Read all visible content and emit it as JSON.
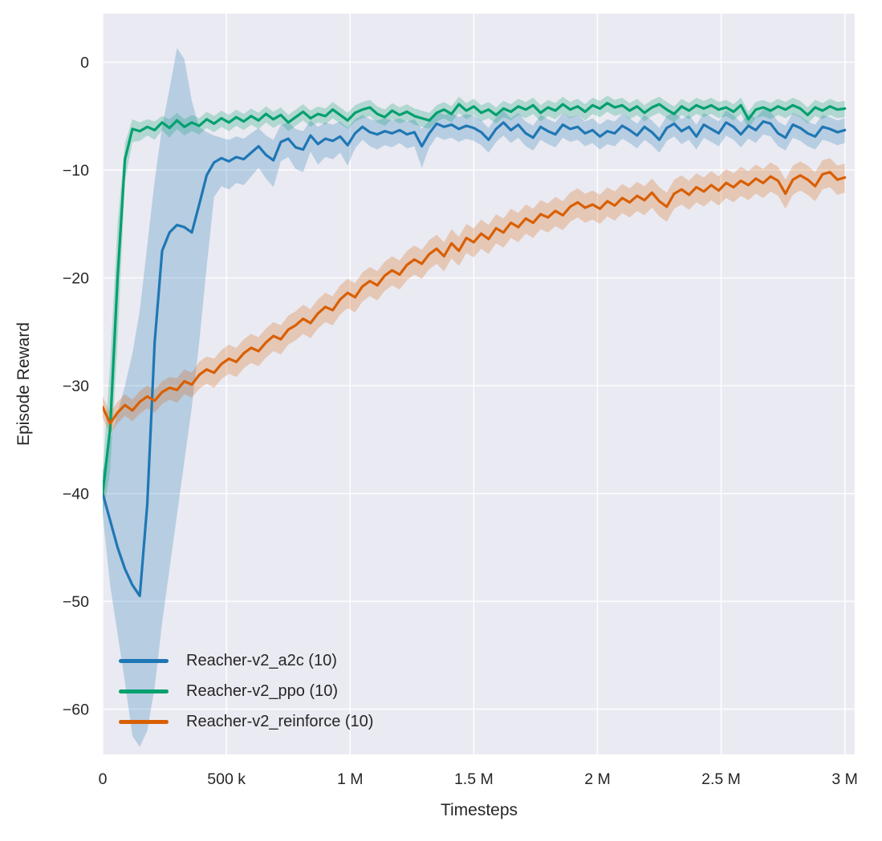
{
  "figure": {
    "background": "#ffffff",
    "plot_background": "#eaeaf2",
    "grid_color": "#ffffff",
    "text_color": "#262626"
  },
  "chart_data": {
    "type": "line",
    "title": "",
    "xlabel": "Timesteps",
    "ylabel": "Episode Reward",
    "xlim": [
      0,
      3040000
    ],
    "ylim": [
      -64.2,
      4.5
    ],
    "grid": true,
    "legend_position": "lower-left",
    "band_opacity": 0.25,
    "x_ticks": [
      {
        "value": 0,
        "label": "0"
      },
      {
        "value": 500000,
        "label": "500 k"
      },
      {
        "value": 1000000,
        "label": "1 M"
      },
      {
        "value": 1500000,
        "label": "1.5 M"
      },
      {
        "value": 2000000,
        "label": "2 M"
      },
      {
        "value": 2500000,
        "label": "2.5 M"
      },
      {
        "value": 3000000,
        "label": "3 M"
      }
    ],
    "y_ticks": [
      {
        "value": 0,
        "label": "0"
      },
      {
        "value": -10,
        "label": "−10"
      },
      {
        "value": -20,
        "label": "−20"
      },
      {
        "value": -30,
        "label": "−30"
      },
      {
        "value": -40,
        "label": "−40"
      },
      {
        "value": -50,
        "label": "−50"
      },
      {
        "value": -60,
        "label": "−60"
      }
    ],
    "x_start": 0,
    "x_step": 30000,
    "series": [
      {
        "name": "Reacher-v2_a2c (10)",
        "color": "#1f77b4",
        "values": [
          -40,
          -42.5,
          -45,
          -47,
          -48.5,
          -49.5,
          -41,
          -26,
          -17.5,
          -15.8,
          -15.1,
          -15.3,
          -15.8,
          -13.2,
          -10.5,
          -9.3,
          -8.9,
          -9.2,
          -8.8,
          -9.0,
          -8.4,
          -7.8,
          -8.6,
          -9.1,
          -7.4,
          -7.1,
          -7.9,
          -8.1,
          -6.8,
          -7.6,
          -7.1,
          -7.3,
          -6.9,
          -7.7,
          -6.6,
          -6.0,
          -6.5,
          -6.7,
          -6.4,
          -6.6,
          -6.3,
          -6.7,
          -6.5,
          -7.8,
          -6.6,
          -5.7,
          -6.0,
          -5.8,
          -6.2,
          -5.9,
          -6.1,
          -6.5,
          -7.2,
          -6.2,
          -5.6,
          -6.3,
          -5.8,
          -6.6,
          -7.0,
          -6.0,
          -6.4,
          -6.7,
          -5.8,
          -6.2,
          -6.0,
          -6.6,
          -6.3,
          -6.9,
          -6.4,
          -6.6,
          -5.9,
          -6.3,
          -6.8,
          -6.0,
          -6.5,
          -7.2,
          -6.1,
          -5.7,
          -6.4,
          -6.0,
          -6.9,
          -5.8,
          -6.2,
          -6.6,
          -5.6,
          -6.0,
          -6.7,
          -5.9,
          -6.3,
          -5.5,
          -5.7,
          -6.6,
          -7.0,
          -5.8,
          -6.1,
          -6.6,
          -6.9,
          -6.0,
          -6.2,
          -6.5,
          -6.3
        ],
        "band_below": [
          2,
          6,
          8,
          10.5,
          14,
          14,
          21,
          32,
          34.5,
          31.2,
          26.9,
          21.7,
          16.2,
          12.8,
          8.5,
          3.2,
          2.6,
          2.6,
          2.4,
          2.4,
          2.2,
          2.0,
          2.2,
          2.5,
          1.8,
          1.7,
          2.0,
          2.1,
          1.5,
          1.9,
          1.7,
          1.7,
          1.5,
          1.9,
          1.4,
          1.2,
          1.3,
          1.4,
          1.3,
          1.3,
          1.2,
          1.3,
          1.3,
          2.0,
          1.3,
          1.2
        ],
        "band_above": [
          2,
          7.5,
          12.5,
          17,
          21.5,
          26.5,
          24,
          15,
          11.5,
          13.3,
          16.4,
          15.6,
          12.2,
          7.2,
          4.0,
          2.5,
          1.9,
          2.0,
          1.9,
          1.9,
          1.8,
          1.7,
          1.8,
          1.9,
          1.6,
          1.5,
          1.7,
          1.7,
          1.4,
          1.6,
          1.5,
          1.5,
          1.4,
          1.6,
          1.3,
          1.1,
          1.2,
          1.3,
          1.2,
          1.2,
          1.1,
          1.2,
          1.2,
          1.6,
          1.2,
          1.1
        ]
      },
      {
        "name": "Reacher-v2_ppo (10)",
        "color": "#02a06e",
        "values": [
          -40,
          -34,
          -20,
          -9,
          -6.2,
          -6.4,
          -6.0,
          -6.3,
          -5.6,
          -6.1,
          -5.4,
          -6.0,
          -5.6,
          -5.9,
          -5.3,
          -5.7,
          -5.2,
          -5.6,
          -5.1,
          -5.5,
          -5.0,
          -5.4,
          -4.8,
          -5.3,
          -4.9,
          -5.6,
          -5.1,
          -4.6,
          -5.2,
          -4.8,
          -5.0,
          -4.4,
          -4.9,
          -5.4,
          -4.7,
          -4.4,
          -4.2,
          -4.8,
          -5.1,
          -4.5,
          -4.9,
          -4.6,
          -5.0,
          -5.2,
          -5.4,
          -4.7,
          -4.4,
          -4.8,
          -3.9,
          -4.5,
          -4.1,
          -4.7,
          -4.4,
          -4.9,
          -4.3,
          -4.6,
          -4.1,
          -4.4,
          -4.0,
          -4.7,
          -4.2,
          -4.5,
          -3.9,
          -4.4,
          -4.1,
          -4.6,
          -4.0,
          -4.3,
          -3.8,
          -4.2,
          -4.0,
          -4.5,
          -4.1,
          -4.7,
          -4.2,
          -3.9,
          -4.4,
          -4.8,
          -4.1,
          -4.5,
          -4.0,
          -4.3,
          -4.0,
          -4.4,
          -4.2,
          -4.6,
          -4.0,
          -5.3,
          -4.4,
          -4.2,
          -4.5,
          -4.1,
          -4.4,
          -4.0,
          -4.3,
          -4.9,
          -4.2,
          -4.5,
          -4.1,
          -4.4,
          -4.3
        ],
        "band_below": [
          2,
          4,
          6,
          2,
          1.2,
          0.9,
          0.8,
          0.9,
          0.7,
          0.9,
          0.8
        ],
        "band_above": [
          2,
          6,
          5,
          1.5,
          0.9,
          0.8,
          0.7,
          0.8,
          0.6,
          0.8,
          0.7
        ]
      },
      {
        "name": "Reacher-v2_reinforce (10)",
        "color": "#d95f02",
        "values": [
          -32,
          -33.5,
          -32.5,
          -31.8,
          -32.3,
          -31.5,
          -31.0,
          -31.4,
          -30.6,
          -30.2,
          -30.4,
          -29.6,
          -29.9,
          -29.0,
          -28.5,
          -28.8,
          -28.0,
          -27.5,
          -27.8,
          -27.0,
          -26.5,
          -26.8,
          -26.0,
          -25.4,
          -25.7,
          -24.8,
          -24.4,
          -23.8,
          -24.2,
          -23.3,
          -22.7,
          -23.0,
          -22.0,
          -21.4,
          -21.8,
          -20.8,
          -20.3,
          -20.7,
          -19.8,
          -19.3,
          -19.7,
          -18.8,
          -18.3,
          -18.7,
          -17.8,
          -17.3,
          -18.0,
          -16.8,
          -17.5,
          -16.3,
          -16.7,
          -15.9,
          -16.4,
          -15.4,
          -15.8,
          -14.9,
          -15.3,
          -14.5,
          -14.9,
          -14.1,
          -14.4,
          -13.8,
          -14.2,
          -13.4,
          -13.0,
          -13.5,
          -13.2,
          -13.6,
          -12.9,
          -13.3,
          -12.6,
          -13.0,
          -12.4,
          -12.8,
          -12.1,
          -12.9,
          -13.4,
          -12.2,
          -11.8,
          -12.3,
          -11.6,
          -12.0,
          -11.4,
          -11.9,
          -11.2,
          -11.6,
          -11.0,
          -11.4,
          -10.8,
          -11.2,
          -10.6,
          -11.0,
          -12.2,
          -10.9,
          -10.5,
          -10.9,
          -11.5,
          -10.4,
          -10.2,
          -10.9,
          -10.7
        ],
        "band_below": [
          1.0,
          1.0,
          1.0,
          1.0,
          1.0,
          1.1,
          1.1,
          1.1,
          1.1,
          1.1,
          1.2,
          1.2,
          1.2,
          1.3,
          1.3,
          1.4
        ],
        "band_above": [
          1.0,
          1.0,
          1.0,
          1.0,
          1.0,
          1.0,
          1.0,
          1.0,
          1.0,
          1.0,
          1.1,
          1.1,
          1.1,
          1.2,
          1.2,
          1.3
        ]
      }
    ]
  }
}
